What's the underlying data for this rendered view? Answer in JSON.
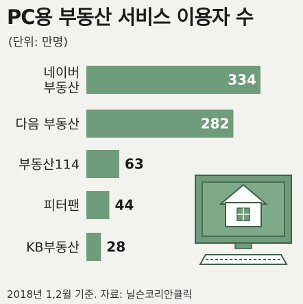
{
  "header": {
    "title": "PC용 부동산 서비스 이용자 수",
    "unit": "(단위: 만명)"
  },
  "footer": {
    "source": "2018년 1,2월 기준. 자료: 닐슨코리안클릭"
  },
  "colors": {
    "bar": "#6f9c7a",
    "background": "#f2f3ee",
    "monitor": "#6f9c7a"
  },
  "icons": [
    "computer-monitor-icon",
    "house-icon",
    "keyboard-icon"
  ],
  "chart_data": {
    "type": "bar",
    "orientation": "horizontal",
    "categories": [
      [
        "네이버",
        "부동산"
      ],
      [
        "다음 부동산"
      ],
      [
        "부동산114"
      ],
      [
        "피터팬"
      ],
      [
        "KB부동산"
      ]
    ],
    "values": [
      334,
      282,
      63,
      44,
      28
    ],
    "title": "PC용 부동산 서비스 이용자 수",
    "unit": "(단위: 만명)",
    "xlim": [
      0,
      334
    ],
    "grid": false,
    "legend": "none"
  }
}
